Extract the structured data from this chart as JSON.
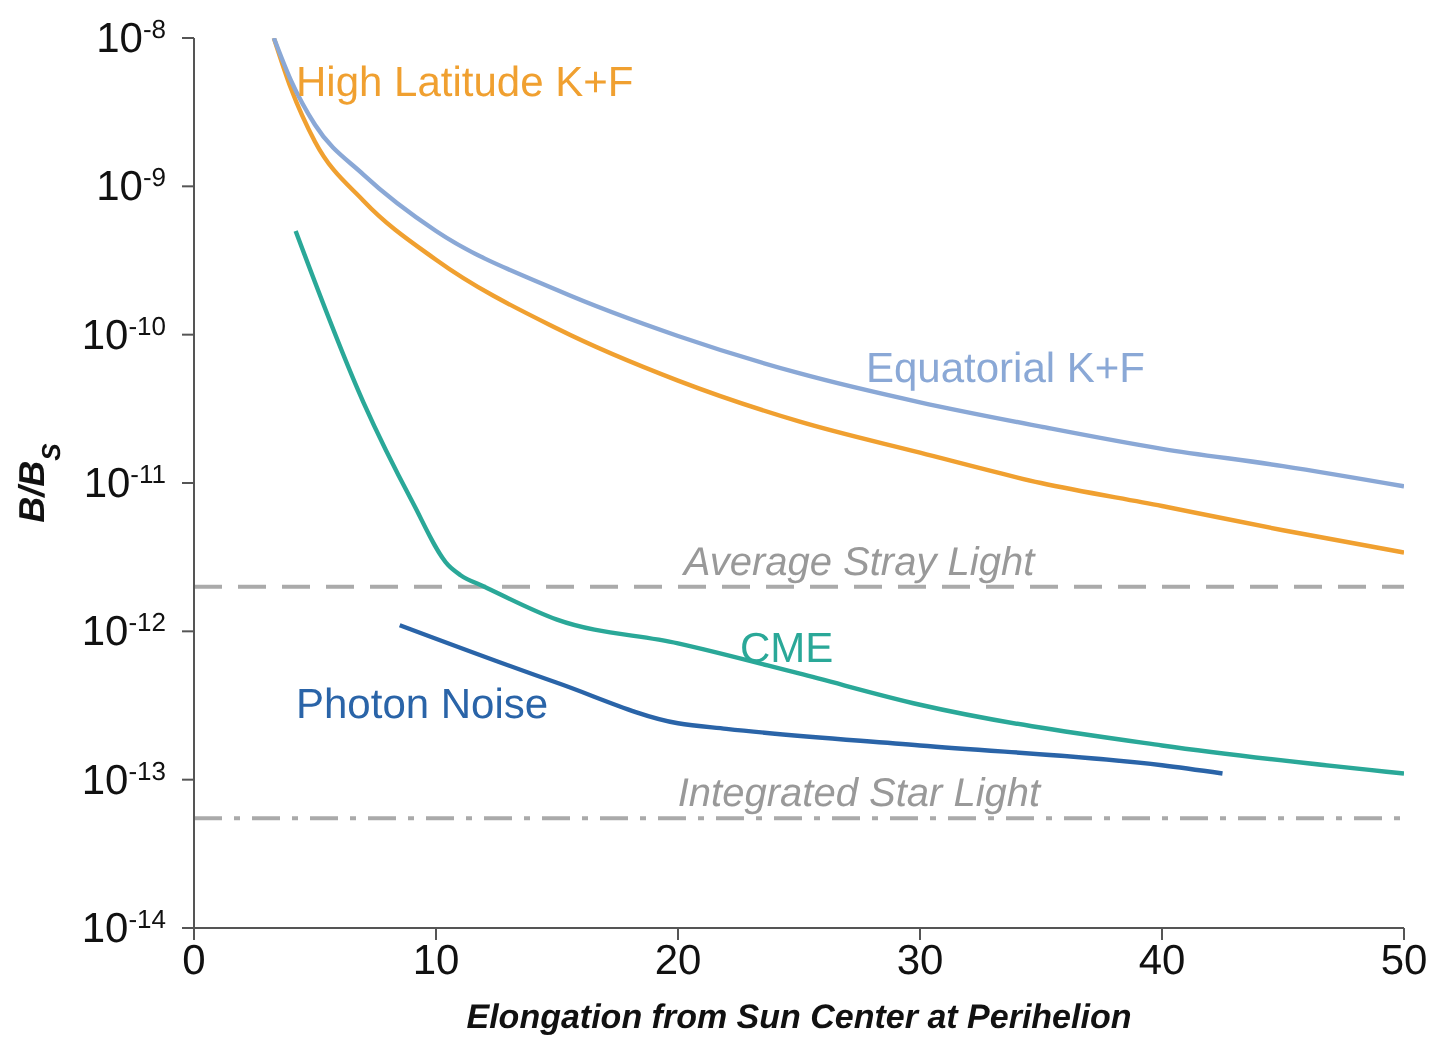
{
  "chart_data": {
    "type": "line",
    "xlabel": "Elongation from Sun Center at Perihelion",
    "ylabel": "B/B$_{S}$",
    "log": "y",
    "marker": "none",
    "line_style": "solid",
    "xlim": [
      0,
      50
    ],
    "xticks": [
      0,
      10,
      20,
      30,
      40,
      50
    ],
    "ylim": [
      1e-14,
      1e-08
    ],
    "yticks": [
      {
        "value": 1e-14,
        "label": "10$^{-14}$"
      },
      {
        "value": 1e-13,
        "label": "10$^{-13}$"
      },
      {
        "value": 1e-12,
        "label": "10$^{-12}$"
      },
      {
        "value": 1e-11,
        "label": "10$^{-11}$"
      },
      {
        "value": 1e-10,
        "label": "10$^{-10}$"
      },
      {
        "value": 1e-09,
        "label": "10$^{-9}$"
      },
      {
        "value": 1e-08,
        "label": "10$^{-8}$"
      }
    ],
    "series": [
      {
        "name": "High Latitude K+F",
        "color": "#f0a030",
        "x": [
          3.3,
          4,
          5,
          7,
          10,
          15,
          20,
          25,
          30,
          35,
          40,
          45,
          50
        ],
        "values": [
          1e-08,
          4.6e-09,
          2e-09,
          8e-10,
          3.2e-10,
          1.1e-10,
          4.9e-11,
          2.6e-11,
          1.6e-11,
          1e-11,
          7e-12,
          4.8e-12,
          3.4e-12
        ]
      },
      {
        "name": "Equatorial K+F",
        "color": "#8aa8d6",
        "x": [
          3.3,
          4,
          5,
          7,
          10,
          15,
          20,
          25,
          30,
          35,
          40,
          45,
          50
        ],
        "values": [
          1e-08,
          5.2e-09,
          2.6e-09,
          1.2e-09,
          5e-10,
          2e-10,
          9.8e-11,
          5.5e-11,
          3.5e-11,
          2.4e-11,
          1.7e-11,
          1.3e-11,
          9.5e-12
        ]
      },
      {
        "name": "CME",
        "color": "#2aa898",
        "x": [
          4.2,
          7,
          9,
          10.5,
          11,
          12,
          15,
          20,
          25,
          30,
          40,
          50
        ],
        "values": [
          5e-10,
          3.5e-11,
          7.6e-12,
          2.8e-12,
          2.4e-12,
          2e-12,
          1.2e-12,
          8.3e-13,
          5.2e-13,
          3.2e-13,
          1.7e-13,
          1.1e-13
        ]
      },
      {
        "name": "Photon Noise",
        "color": "#2a64a8",
        "x": [
          8.5,
          15,
          20,
          22,
          30,
          40,
          42.5
        ],
        "values": [
          1.1e-12,
          4.5e-13,
          2.4e-13,
          2.2e-13,
          1.7e-13,
          1.25e-13,
          1.1e-13
        ]
      }
    ],
    "ref_lines": [
      {
        "axis": "y",
        "value": 2e-12,
        "label": "Average Stray Light",
        "color": "#aaaaaa",
        "line_style": "dashed"
      },
      {
        "axis": "y",
        "value": 5.5e-14,
        "label": "Integrated Star Light",
        "color": "#aaaaaa",
        "line_style": "dashdot"
      }
    ]
  }
}
